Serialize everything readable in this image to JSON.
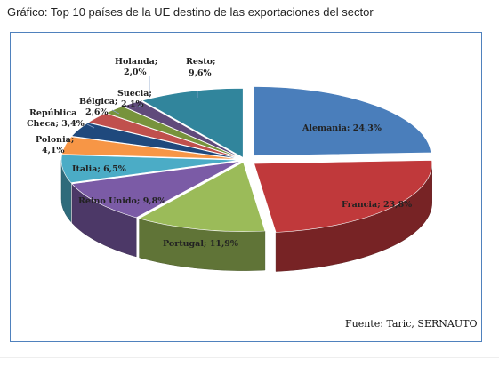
{
  "caption": "Gráfico: Top 10 países de la UE destino de las exportaciones del sector",
  "chart_data": {
    "type": "pie",
    "style": "3d-exploded",
    "title": "",
    "categories": [
      "Alemania",
      "Francia",
      "Portugal",
      "Reino Unido",
      "Italia",
      "Polonia",
      "República Checa",
      "Bélgica",
      "Suecia",
      "Holanda",
      "Resto"
    ],
    "values": [
      24.3,
      23.8,
      11.9,
      9.8,
      6.5,
      4.1,
      3.4,
      2.6,
      2.1,
      2.0,
      9.6
    ],
    "unit": "%",
    "colors": [
      "#4a7ebb",
      "#c0393b",
      "#9bbb59",
      "#7b5ba6",
      "#4bacc6",
      "#f79646",
      "#1f497d",
      "#c0504d",
      "#77933c",
      "#604a7b",
      "#31859c"
    ],
    "labels": {
      "alemania": "Alemania: 24,3%",
      "francia": "Francia; 23,8%",
      "portugal": "Portugal; 11,9%",
      "reino_unido": "Reino Unido; 9,8%",
      "italia": "Italia; 6,5%",
      "polonia_1": "Polonia;",
      "polonia_2": "4,1%",
      "republica_1": "República",
      "republica_2": "Checa; 3,4%",
      "belgica_1": "Bélgica;",
      "belgica_2": "2,6%",
      "suecia_1": "Suecia;",
      "suecia_2": "2,1%",
      "holanda_1": "Holanda;",
      "holanda_2": "2,0%",
      "resto_1": "Resto;",
      "resto_2": "9,6%"
    },
    "source": "Fuente: Taric, SERNAUTO"
  }
}
